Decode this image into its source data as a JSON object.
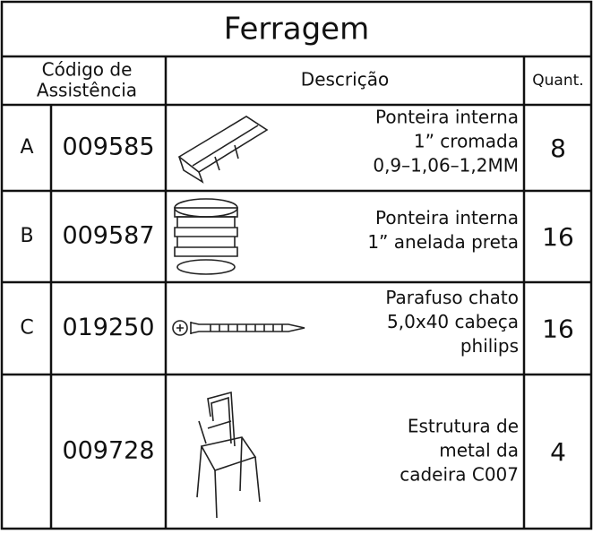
{
  "title": "Ferragem",
  "headers": {
    "code": [
      "Código de",
      "Assistência"
    ],
    "description": "Descrição",
    "quantity": "Quant."
  },
  "rows": [
    {
      "letter": "A",
      "code": "009585",
      "description": [
        "Ponteira interna",
        "1” cromada",
        "0,9–1,06–1,2MM"
      ],
      "quantity": 8
    },
    {
      "letter": "B",
      "code": "009587",
      "description": [
        "Ponteira interna",
        "1” anelada preta"
      ],
      "quantity": 16
    },
    {
      "letter": "C",
      "code": "019250",
      "description": [
        "Parafuso chato",
        "5,0x40 cabeça",
        "philips"
      ],
      "quantity": 16
    },
    {
      "code": "009728",
      "description": [
        "Estrutura de",
        "metal da",
        "cadeira C007"
      ],
      "quantity": 4
    }
  ]
}
